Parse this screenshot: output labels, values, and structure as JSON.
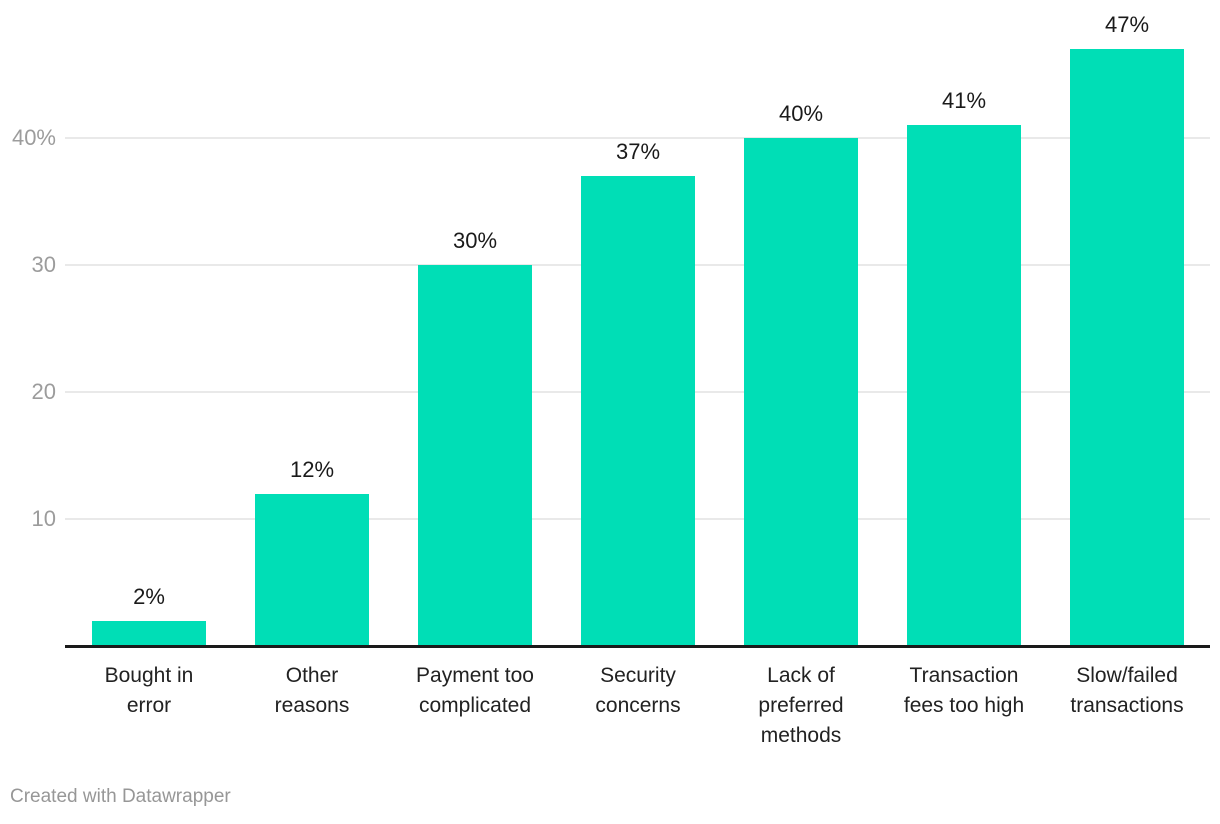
{
  "chart_data": {
    "type": "bar",
    "title": "",
    "xlabel": "",
    "ylabel": "",
    "categories": [
      "Bought in error",
      "Other reasons",
      "Payment too complicated",
      "Security concerns",
      "Lack of preferred methods",
      "Transaction fees too high",
      "Slow/failed transactions"
    ],
    "category_label_lines": [
      [
        "Bought in",
        "error"
      ],
      [
        "Other",
        "reasons"
      ],
      [
        "Payment too",
        "complicated"
      ],
      [
        "Security",
        "concerns"
      ],
      [
        "Lack of",
        "preferred",
        "methods"
      ],
      [
        "Transaction",
        "fees too high"
      ],
      [
        "Slow/failed",
        "transactions"
      ]
    ],
    "values": [
      2,
      12,
      30,
      37,
      40,
      41,
      47
    ],
    "value_labels": [
      "2%",
      "12%",
      "30%",
      "37%",
      "40%",
      "41%",
      "47%"
    ],
    "y_ticks": [
      10,
      20,
      30,
      40
    ],
    "y_tick_labels": [
      "10",
      "20",
      "30",
      "40%"
    ],
    "ylim": [
      0,
      50
    ],
    "grid": true,
    "legend": "none",
    "colors": {
      "bar": "#00deb6",
      "gridline": "#e9e9e9",
      "axis_line": "#1a1a1a",
      "tick_label": "#9c9c9c",
      "value_label": "#1a1a1a",
      "category_label": "#222222"
    }
  },
  "footer": {
    "attribution": "Created with Datawrapper",
    "color": "#979797"
  }
}
